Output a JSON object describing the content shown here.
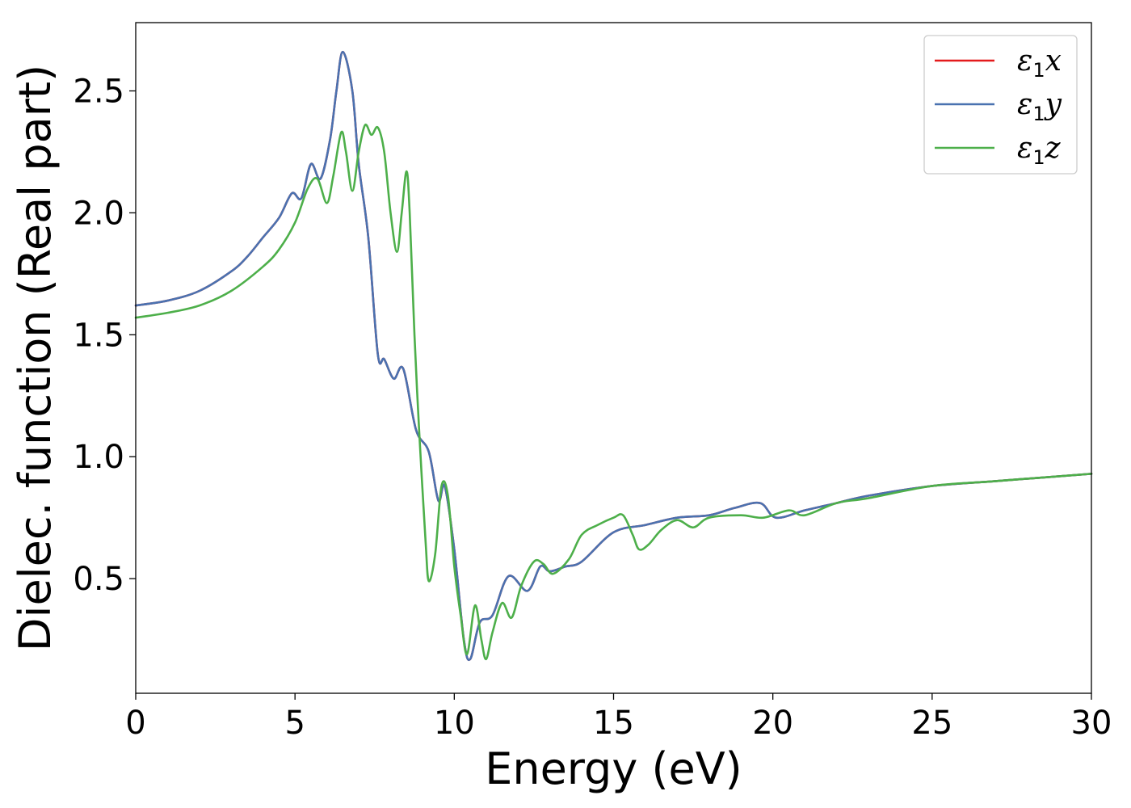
{
  "chart_data": {
    "type": "line",
    "title": "",
    "xlabel": "Energy (eV)",
    "ylabel": "Dielec. function (Real part)",
    "xlim": [
      0,
      30
    ],
    "ylim": [
      0.03,
      2.78
    ],
    "xticks": [
      0,
      5,
      10,
      15,
      20,
      25,
      30
    ],
    "xtick_labels": [
      "0",
      "5",
      "10",
      "15",
      "20",
      "25",
      "30"
    ],
    "yticks": [
      0.5,
      1.0,
      1.5,
      2.0,
      2.5
    ],
    "ytick_labels": [
      "0.5",
      "1.0",
      "1.5",
      "2.0",
      "2.5"
    ],
    "grid": false,
    "legend": {
      "position": "top-right"
    },
    "series": [
      {
        "name": "ε1x",
        "legend_main": "ε",
        "legend_sub": "1",
        "legend_var": "x",
        "color": "#e41a1c",
        "x": [
          0,
          1,
          2,
          3,
          3.5,
          4,
          4.5,
          4.9,
          5.2,
          5.5,
          5.8,
          6.1,
          6.3,
          6.5,
          6.8,
          7.0,
          7.3,
          7.6,
          7.8,
          8.1,
          8.4,
          8.8,
          9.2,
          9.5,
          9.7,
          10.0,
          10.3,
          10.5,
          10.8,
          11.2,
          11.7,
          12.3,
          12.7,
          13.0,
          13.5,
          14.0,
          15.0,
          16.0,
          17.0,
          18.0,
          18.8,
          19.6,
          20.1,
          21.0,
          22.0,
          23.0,
          25.0,
          27.0,
          30.0
        ],
        "y": [
          1.62,
          1.64,
          1.68,
          1.76,
          1.82,
          1.9,
          1.98,
          2.08,
          2.06,
          2.2,
          2.14,
          2.3,
          2.5,
          2.66,
          2.5,
          2.2,
          1.9,
          1.42,
          1.4,
          1.32,
          1.36,
          1.11,
          1.02,
          0.82,
          0.88,
          0.62,
          0.25,
          0.17,
          0.32,
          0.35,
          0.51,
          0.45,
          0.55,
          0.53,
          0.55,
          0.57,
          0.69,
          0.72,
          0.75,
          0.76,
          0.79,
          0.81,
          0.75,
          0.78,
          0.81,
          0.84,
          0.88,
          0.9,
          0.93
        ]
      },
      {
        "name": "ε1y",
        "legend_main": "ε",
        "legend_sub": "1",
        "legend_var": "y",
        "color": "#4a72b0",
        "x": [
          0,
          1,
          2,
          3,
          3.5,
          4,
          4.5,
          4.9,
          5.2,
          5.5,
          5.8,
          6.1,
          6.3,
          6.5,
          6.8,
          7.0,
          7.3,
          7.6,
          7.8,
          8.1,
          8.4,
          8.8,
          9.2,
          9.5,
          9.7,
          10.0,
          10.3,
          10.5,
          10.8,
          11.2,
          11.7,
          12.3,
          12.7,
          13.0,
          13.5,
          14.0,
          15.0,
          16.0,
          17.0,
          18.0,
          18.8,
          19.6,
          20.1,
          21.0,
          22.0,
          23.0,
          25.0,
          27.0,
          30.0
        ],
        "y": [
          1.62,
          1.64,
          1.68,
          1.76,
          1.82,
          1.9,
          1.98,
          2.08,
          2.06,
          2.2,
          2.14,
          2.3,
          2.5,
          2.66,
          2.5,
          2.2,
          1.9,
          1.42,
          1.4,
          1.32,
          1.36,
          1.11,
          1.02,
          0.82,
          0.88,
          0.62,
          0.25,
          0.17,
          0.32,
          0.35,
          0.51,
          0.45,
          0.55,
          0.53,
          0.55,
          0.57,
          0.69,
          0.72,
          0.75,
          0.76,
          0.79,
          0.81,
          0.75,
          0.78,
          0.81,
          0.84,
          0.88,
          0.9,
          0.93
        ]
      },
      {
        "name": "ε1z",
        "legend_main": "ε",
        "legend_sub": "1",
        "legend_var": "z",
        "color": "#4daf4a",
        "x": [
          0,
          1,
          2,
          3,
          4,
          4.5,
          5.0,
          5.4,
          5.7,
          6.0,
          6.2,
          6.45,
          6.6,
          6.8,
          7.0,
          7.2,
          7.4,
          7.6,
          7.8,
          8.0,
          8.2,
          8.35,
          8.5,
          8.6,
          8.75,
          8.9,
          9.1,
          9.2,
          9.4,
          9.6,
          9.8,
          10.0,
          10.2,
          10.4,
          10.65,
          10.85,
          11.0,
          11.2,
          11.5,
          11.8,
          12.1,
          12.5,
          12.8,
          13.1,
          13.6,
          14.0,
          14.5,
          15.0,
          15.3,
          15.6,
          15.8,
          16.1,
          16.5,
          17.0,
          17.5,
          18.0,
          19.0,
          19.7,
          20.5,
          21.0,
          22.0,
          23.0,
          25.0,
          27.0,
          30.0
        ],
        "y": [
          1.57,
          1.59,
          1.62,
          1.68,
          1.78,
          1.85,
          1.96,
          2.1,
          2.14,
          2.04,
          2.15,
          2.33,
          2.25,
          2.09,
          2.25,
          2.36,
          2.32,
          2.35,
          2.25,
          2.0,
          1.84,
          2.0,
          2.17,
          2.0,
          1.5,
          1.1,
          0.65,
          0.49,
          0.6,
          0.88,
          0.84,
          0.55,
          0.35,
          0.19,
          0.39,
          0.25,
          0.17,
          0.28,
          0.4,
          0.34,
          0.47,
          0.57,
          0.56,
          0.52,
          0.58,
          0.68,
          0.72,
          0.75,
          0.76,
          0.68,
          0.62,
          0.64,
          0.7,
          0.74,
          0.71,
          0.75,
          0.76,
          0.75,
          0.78,
          0.76,
          0.81,
          0.83,
          0.88,
          0.9,
          0.93
        ]
      }
    ]
  }
}
